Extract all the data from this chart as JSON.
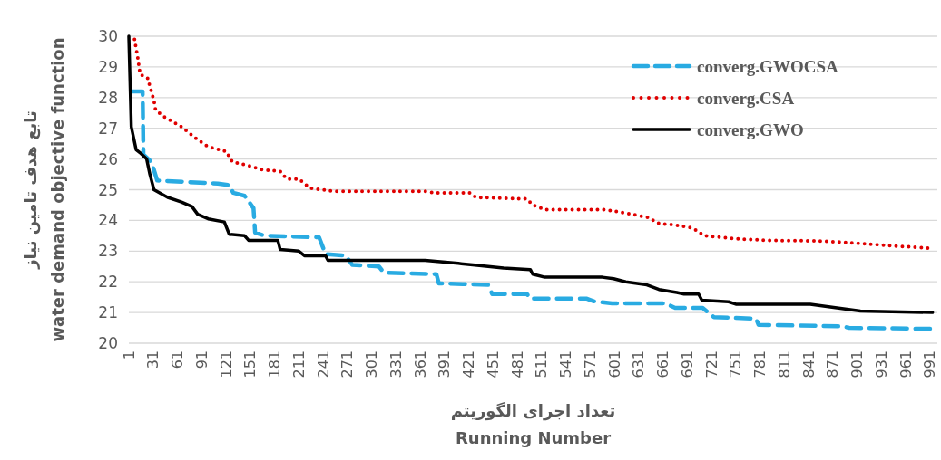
{
  "chart_data": {
    "type": "line",
    "xlabel": "تعداد اجرای الگوریتم\nRunning Number",
    "ylabel": "تابع هدف تامین نیاز\nwater demand objective function",
    "xlim": [
      1,
      1000
    ],
    "xticks": [
      1,
      31,
      61,
      91,
      121,
      151,
      181,
      211,
      241,
      271,
      301,
      331,
      361,
      391,
      421,
      451,
      481,
      511,
      541,
      571,
      601,
      631,
      661,
      691,
      721,
      751,
      781,
      811,
      841,
      871,
      901,
      931,
      961,
      991
    ],
    "ylim": [
      20,
      30
    ],
    "yticks": [
      20,
      21,
      22,
      23,
      24,
      25,
      26,
      27,
      28,
      29,
      30
    ],
    "grid": "y",
    "legend": "top right",
    "series": [
      {
        "name": "converg.GWOCSA",
        "color": "#29abe2",
        "line_style": "dashed",
        "x": [
          4,
          18,
          19,
          29,
          36,
          111,
          125,
          130,
          144,
          155,
          157,
          169,
          236,
          244,
          269,
          277,
          310,
          316,
          381,
          384,
          445,
          450,
          493,
          497,
          567,
          575,
          598,
          664,
          676,
          710,
          724,
          776,
          779,
          883,
          891,
          991
        ],
        "values": [
          28.2,
          28.2,
          26.15,
          25.9,
          25.3,
          25.2,
          25.15,
          24.9,
          24.8,
          24.4,
          23.6,
          23.5,
          23.45,
          22.9,
          22.85,
          22.55,
          22.5,
          22.3,
          22.25,
          21.95,
          21.9,
          21.6,
          21.6,
          21.45,
          21.45,
          21.37,
          21.3,
          21.3,
          21.15,
          21.15,
          20.85,
          20.8,
          20.6,
          20.55,
          20.5,
          20.47
        ]
      },
      {
        "name": "converg.CSA",
        "color": "#e00000",
        "line_style": "dotted",
        "x": [
          8,
          12,
          15,
          24,
          32,
          34,
          43,
          66,
          85,
          99,
          121,
          129,
          147,
          166,
          188,
          196,
          211,
          225,
          255,
          367,
          378,
          422,
          430,
          493,
          500,
          515,
          590,
          612,
          642,
          656,
          676,
          698,
          712,
          753,
          790,
          854,
          876,
          928,
          988
        ],
        "values": [
          29.9,
          29.3,
          28.75,
          28.65,
          27.9,
          27.6,
          27.4,
          27.05,
          26.65,
          26.4,
          26.25,
          25.9,
          25.8,
          25.65,
          25.6,
          25.35,
          25.35,
          25.05,
          24.95,
          24.95,
          24.9,
          24.9,
          24.75,
          24.7,
          24.5,
          24.35,
          24.35,
          24.25,
          24.1,
          23.9,
          23.85,
          23.75,
          23.5,
          23.4,
          23.35,
          23.33,
          23.3,
          23.2,
          23.1
        ]
      },
      {
        "name": "converg.GWO",
        "color": "#000000",
        "line_style": "solid",
        "x": [
          1,
          4,
          10,
          15,
          23,
          27,
          32,
          49,
          66,
          79,
          86,
          99,
          119,
          125,
          144,
          149,
          185,
          188,
          211,
          218,
          244,
          247,
          367,
          408,
          426,
          464,
          497,
          500,
          515,
          586,
          600,
          615,
          641,
          656,
          678,
          687,
          705,
          709,
          742,
          751,
          843,
          876,
          905,
          994
        ],
        "values": [
          30,
          27.05,
          26.3,
          26.2,
          26.0,
          25.5,
          25.0,
          24.75,
          24.6,
          24.45,
          24.2,
          24.05,
          23.95,
          23.55,
          23.5,
          23.35,
          23.35,
          23.05,
          23.0,
          22.85,
          22.85,
          22.7,
          22.7,
          22.6,
          22.55,
          22.45,
          22.4,
          22.25,
          22.15,
          22.15,
          22.1,
          22.0,
          21.9,
          21.75,
          21.65,
          21.6,
          21.6,
          21.4,
          21.35,
          21.27,
          21.27,
          21.15,
          21.05,
          21.0
        ]
      }
    ]
  }
}
